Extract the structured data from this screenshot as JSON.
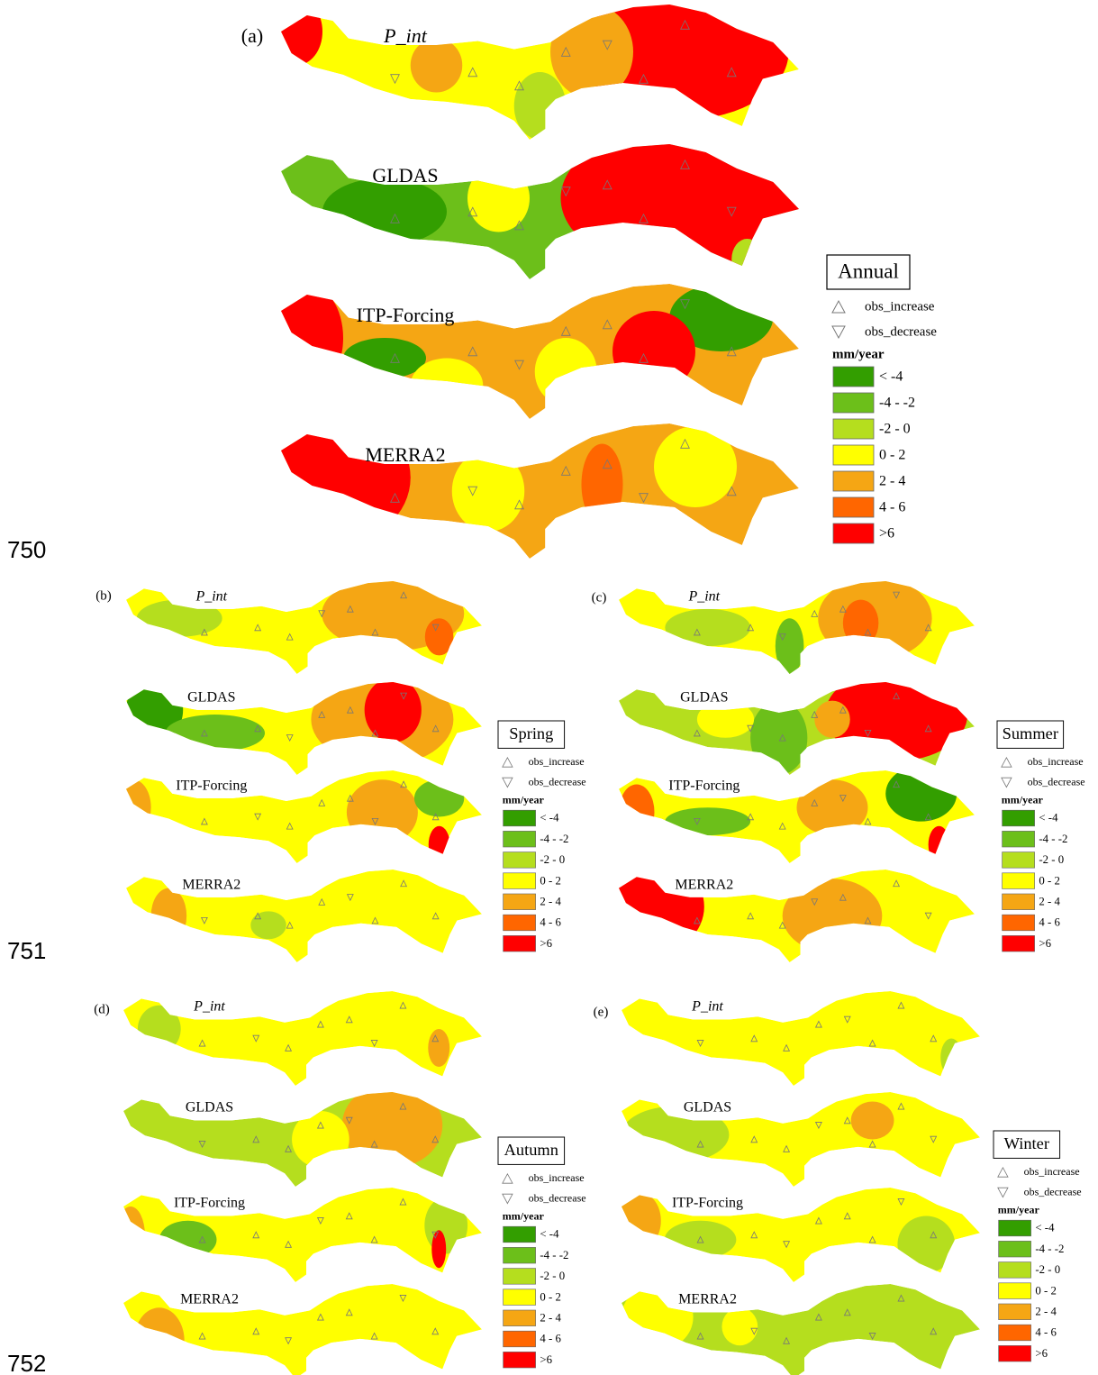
{
  "line_numbers": [
    "750",
    "751",
    "752"
  ],
  "legend": {
    "increase": "obs_increase",
    "decrease": "obs_decrease",
    "unit": "mm/year",
    "classes": [
      {
        "label": "< -4",
        "color": "#339e00"
      },
      {
        "label": "-4 - -2",
        "color": "#6cbf1a"
      },
      {
        "label": "-2 - 0",
        "color": "#b5de1e"
      },
      {
        "label": "0 - 2",
        "color": "#ffff00"
      },
      {
        "label": "2 - 4",
        "color": "#f5a614"
      },
      {
        "label": "4 - 6",
        "color": "#ff6600"
      },
      {
        "label": ">6",
        "color": "#ff0000"
      }
    ]
  },
  "panels": [
    {
      "label": "(a)",
      "season": "Annual",
      "maps": [
        "P_int",
        "GLDAS",
        "ITP-Forcing",
        "MERRA2"
      ]
    },
    {
      "label": "(b)",
      "season": "Spring",
      "maps": [
        "P_int",
        "GLDAS",
        "ITP-Forcing",
        "MERRA2"
      ]
    },
    {
      "label": "(c)",
      "season": "Summer",
      "maps": [
        "P_int",
        "GLDAS",
        "ITP-Forcing",
        "MERRA2"
      ]
    },
    {
      "label": "(d)",
      "season": "Autumn",
      "maps": [
        "P_int",
        "GLDAS",
        "ITP-Forcing",
        "MERRA2"
      ]
    },
    {
      "label": "(e)",
      "season": "Winter",
      "maps": [
        "P_int",
        "GLDAS",
        "ITP-Forcing",
        "MERRA2"
      ]
    }
  ]
}
